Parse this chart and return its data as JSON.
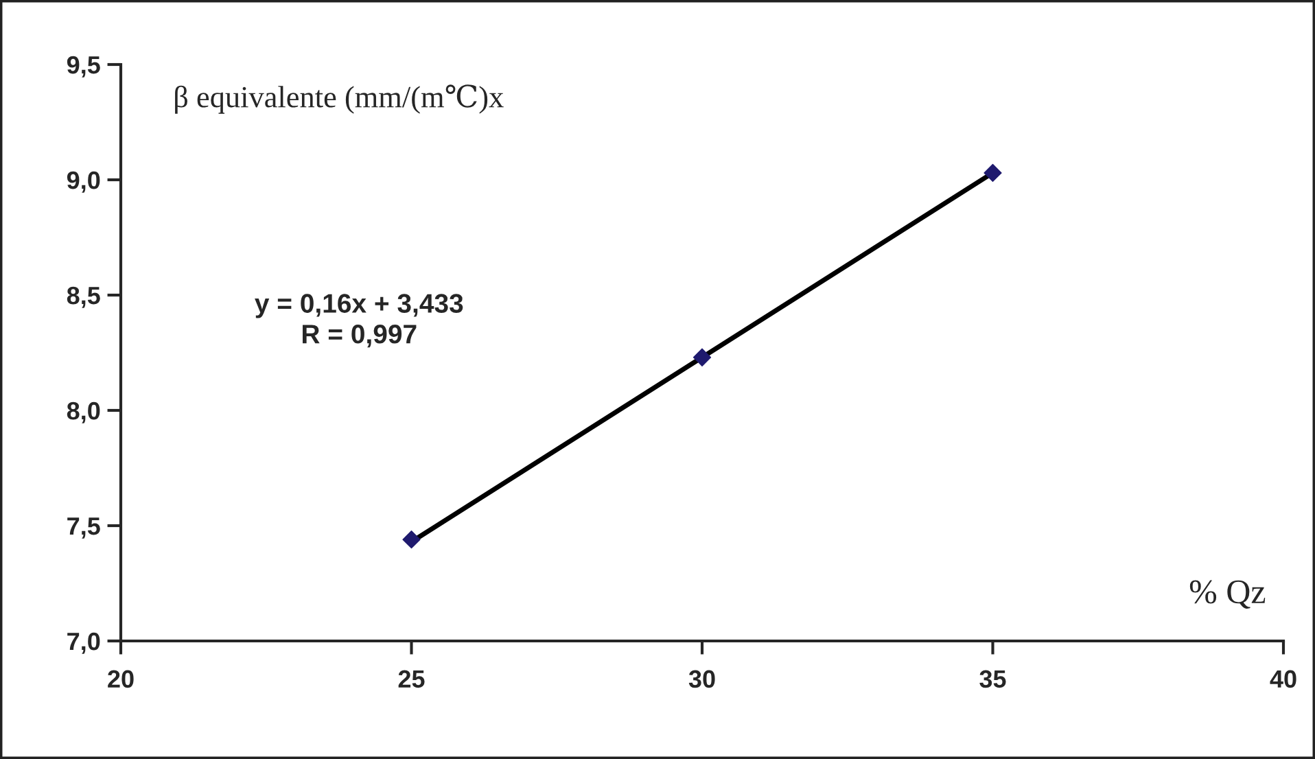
{
  "chart_data": {
    "type": "scatter",
    "xlabel": "% Qz",
    "ylabel": "β equivalente (mm/(m℃)x",
    "annotations": [
      "y = 0,16x + 3,433\nR = 0,997"
    ],
    "series": [
      {
        "type": "scatter",
        "x": [
          25,
          30,
          35
        ],
        "values": [
          7.44,
          8.23,
          9.03
        ],
        "color": "#1f1a6e",
        "marker": "diamond"
      },
      {
        "type": "line",
        "x": [
          25,
          35
        ],
        "values": [
          7.43,
          9.03
        ],
        "color": "#000000",
        "marker": "none",
        "line_style": "solid"
      }
    ],
    "xlim": [
      20,
      40
    ],
    "xticks": [
      20,
      25,
      30,
      35,
      40
    ],
    "ylim": [
      7.0,
      9.5
    ],
    "yticks": [
      {
        "value": 7.0,
        "label": "7,0"
      },
      {
        "value": 7.5,
        "label": "7,5"
      },
      {
        "value": 8.0,
        "label": "8,0"
      },
      {
        "value": 8.5,
        "label": "8,5"
      },
      {
        "value": 9.0,
        "label": "9,0"
      },
      {
        "value": 9.5,
        "label": "9,5"
      }
    ],
    "grid": false,
    "legend": false
  }
}
